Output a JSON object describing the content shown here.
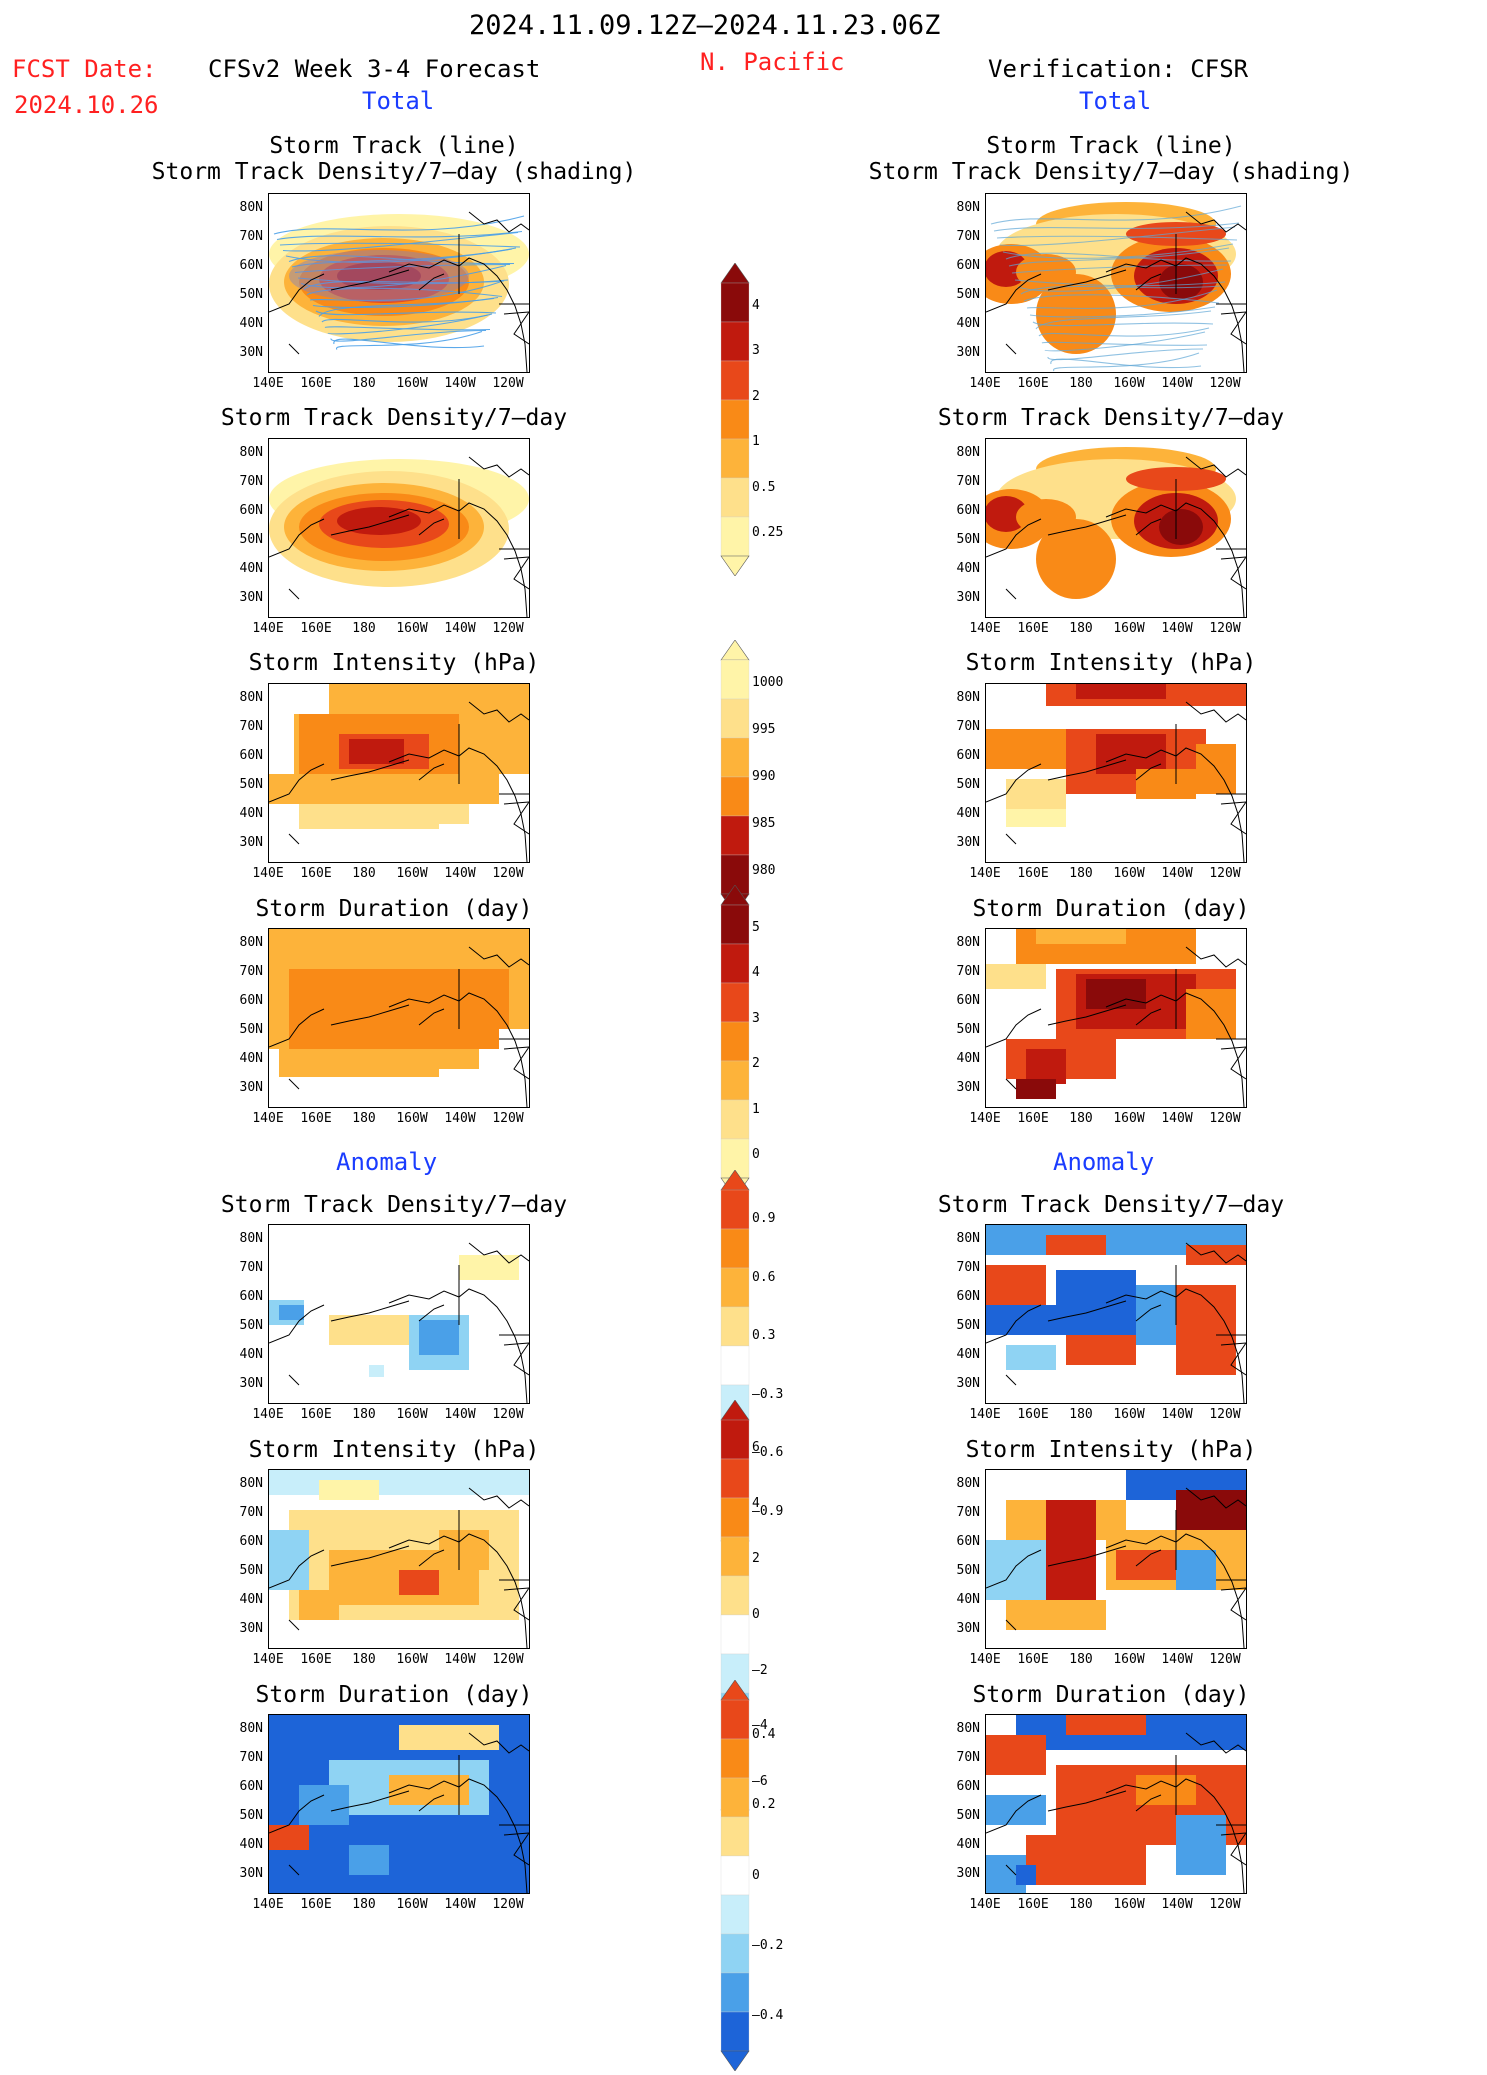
{
  "header": {
    "date_range": "2024.11.09.12Z–2024.11.23.06Z",
    "fcst_label": "FCST Date:",
    "fcst_date": "2024.10.26",
    "model_title": "CFSv2 Week 3-4 Forecast",
    "region": "N. Pacific",
    "verification": "Verification: CFSR"
  },
  "sections": {
    "total_left": "Total",
    "total_right": "Total",
    "anomaly_left": "Anomaly",
    "anomaly_right": "Anomaly"
  },
  "panels": {
    "track_line": "Storm Track (line)",
    "track_shading": "Storm Track Density/7–day (shading)",
    "density": "Storm Track Density/7–day",
    "intensity": "Storm Intensity (hPa)",
    "duration": "Storm Duration (day)"
  },
  "axes": {
    "lat_ticks": [
      "80N",
      "70N",
      "60N",
      "50N",
      "40N",
      "30N"
    ],
    "lon_ticks": [
      "140E",
      "160E",
      "180",
      "160W",
      "140W",
      "120W"
    ]
  },
  "colorbars": {
    "density_total": [
      "4",
      "3",
      "2",
      "1",
      "0.5",
      "0.25"
    ],
    "intensity_total": [
      "1000",
      "995",
      "990",
      "985",
      "980"
    ],
    "duration_total": [
      "5",
      "4",
      "3",
      "2",
      "1",
      "0"
    ],
    "density_anom": [
      "0.9",
      "0.6",
      "0.3",
      "–0.3",
      "–0.6",
      "–0.9"
    ],
    "intensity_anom": [
      "6",
      "4",
      "2",
      "0",
      "–2",
      "–4",
      "–6"
    ],
    "duration_anom": [
      "0.4",
      "0.2",
      "0",
      "–0.2",
      "–0.4"
    ]
  },
  "colors": {
    "warm": [
      "#fff4a8",
      "#fee08b",
      "#fdb33a",
      "#f98a17",
      "#e8481a",
      "#c01a0e",
      "#8a0a0a"
    ],
    "cool": [
      "#c8eefa",
      "#8fd3f3",
      "#4aa0e8",
      "#1d64d8"
    ]
  }
}
